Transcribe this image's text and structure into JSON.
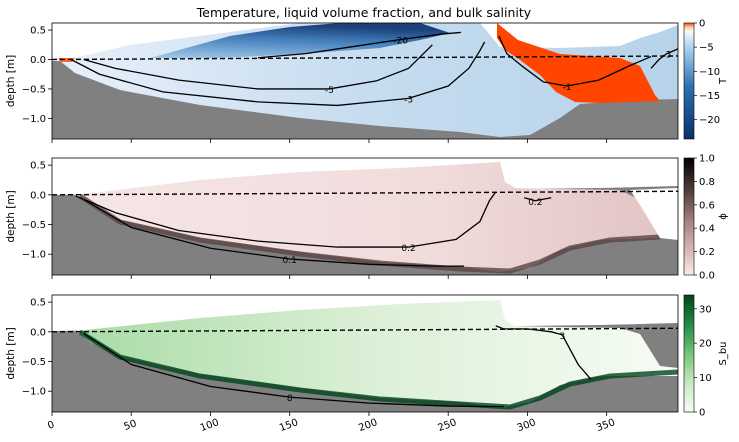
{
  "figure_title": "Temperature, liquid volume fraction, and bulk salinity",
  "colors": {
    "land_gray": "#808080",
    "temperature_cold": "#08306b",
    "temperature_mid": "#6baed6",
    "temperature_warm": "#f5f9fd",
    "temperature_hot": "#ff4500",
    "phi_low": "#f7e4e4",
    "phi_mid": "#a88484",
    "phi_high": "#000000",
    "salinity_low": "#f7fcf5",
    "salinity_mid": "#41ab5d",
    "salinity_high": "#00441b",
    "contour": "#000000"
  },
  "chart_data": [
    {
      "type": "heatmap",
      "variable": "temperature",
      "title": "Temperature, liquid volume fraction, and bulk salinity",
      "ylabel": "depth [m]",
      "xlabel": "",
      "colorbar_label": "T",
      "colormap": "blue-white-orange",
      "xlim": [
        0,
        395
      ],
      "ylim": [
        -1.35,
        0.62
      ],
      "yticks": [
        -1.0,
        -0.5,
        0.0,
        0.5
      ],
      "ytick_labels": [
        "−1.0",
        "−0.5",
        "0.0",
        "0.5"
      ],
      "colorbar_range": [
        -24,
        0
      ],
      "colorbar_ticks": [
        0,
        -5,
        -10,
        -15,
        -20
      ],
      "colorbar_tick_labels": [
        "0",
        "−5",
        "−10",
        "−15",
        "−20"
      ],
      "contour_labels": [
        "-20",
        "-5",
        "-3",
        "-1",
        "-3"
      ],
      "contours": [
        {
          "label": "-20",
          "x": [
            130,
            160,
            190,
            220,
            245,
            258
          ],
          "y": [
            0.03,
            0.1,
            0.22,
            0.34,
            0.43,
            0.46
          ]
        },
        {
          "label": "-5",
          "x": [
            20,
            40,
            80,
            130,
            175,
            205,
            225,
            240
          ],
          "y": [
            0.0,
            -0.15,
            -0.35,
            -0.5,
            -0.5,
            -0.36,
            -0.15,
            0.25
          ]
        },
        {
          "label": "-3",
          "x": [
            12,
            30,
            70,
            130,
            180,
            225,
            250,
            263,
            270,
            273
          ],
          "y": [
            0.0,
            -0.25,
            -0.55,
            -0.72,
            -0.78,
            -0.66,
            -0.45,
            -0.15,
            0.15,
            0.3
          ]
        },
        {
          "label": "-1",
          "x": [
            282,
            287,
            297,
            310,
            325,
            345,
            365,
            378
          ],
          "y": [
            0.4,
            0.1,
            -0.12,
            -0.38,
            -0.45,
            -0.35,
            -0.1,
            0.05
          ]
        },
        {
          "label": "-3",
          "x": [
            378,
            383,
            388,
            395
          ],
          "y": [
            -0.15,
            0.0,
            0.1,
            0.18
          ]
        }
      ],
      "waterline": {
        "x": [
          0,
          100,
          200,
          300,
          395
        ],
        "y": [
          0.0,
          0.015,
          0.03,
          0.045,
          0.06
        ]
      }
    },
    {
      "type": "heatmap",
      "variable": "liquid volume fraction",
      "ylabel": "depth [m]",
      "xlabel": "",
      "colorbar_label": "ϕ",
      "colormap": "pink-to-black",
      "xlim": [
        0,
        395
      ],
      "ylim": [
        -1.35,
        0.62
      ],
      "yticks": [
        -1.0,
        -0.5,
        0.0,
        0.5
      ],
      "ytick_labels": [
        "−1.0",
        "−0.5",
        "0.0",
        "0.5"
      ],
      "colorbar_range": [
        0.0,
        1.0
      ],
      "colorbar_ticks": [
        1.0,
        0.8,
        0.6,
        0.4,
        0.2,
        0.0
      ],
      "colorbar_tick_labels": [
        "1.0",
        "0.8",
        "0.6",
        "0.4",
        "0.2",
        "0.0"
      ],
      "contour_labels": [
        "0.2",
        "0.1",
        "0.2"
      ],
      "contours": [
        {
          "label": "0.1",
          "x": [
            15,
            40,
            80,
            130,
            180,
            225,
            255,
            270,
            276,
            280
          ],
          "y": [
            -0.02,
            -0.3,
            -0.6,
            -0.78,
            -0.88,
            -0.88,
            -0.75,
            -0.45,
            -0.1,
            0.05
          ]
        },
        {
          "label": "0.2",
          "x": [
            20,
            50,
            100,
            150,
            200,
            240,
            260
          ],
          "y": [
            -0.08,
            -0.55,
            -0.9,
            -1.08,
            -1.17,
            -1.2,
            -1.2
          ]
        },
        {
          "label": "0.2",
          "x": [
            298,
            305,
            315
          ],
          "y": [
            -0.05,
            -0.1,
            -0.05
          ]
        }
      ],
      "waterline": {
        "x": [
          0,
          100,
          200,
          300,
          395
        ],
        "y": [
          0.0,
          0.015,
          0.03,
          0.045,
          0.06
        ]
      }
    },
    {
      "type": "heatmap",
      "variable": "bulk salinity",
      "ylabel": "depth [m]",
      "xlabel": "",
      "colorbar_label": "S_bu",
      "colormap": "greens",
      "xlim": [
        0,
        395
      ],
      "ylim": [
        -1.35,
        0.62
      ],
      "yticks": [
        -1.0,
        -0.5,
        0.0,
        0.5
      ],
      "ytick_labels": [
        "−1.0",
        "−0.5",
        "0.0",
        "0.5"
      ],
      "xticks": [
        0,
        50,
        100,
        150,
        200,
        250,
        300,
        350
      ],
      "xtick_labels": [
        "0",
        "50",
        "100",
        "150",
        "200",
        "250",
        "300",
        "350"
      ],
      "colorbar_range": [
        0,
        34
      ],
      "colorbar_ticks": [
        30,
        20,
        10,
        0
      ],
      "colorbar_tick_labels": [
        "30",
        "20",
        "10",
        "0"
      ],
      "contour_labels": [
        "3",
        "8"
      ],
      "contours": [
        {
          "label": "3",
          "x": [
            280,
            285,
            300,
            315,
            322,
            327,
            332,
            340
          ],
          "y": [
            0.1,
            0.05,
            0.05,
            0.0,
            -0.05,
            -0.3,
            -0.55,
            -0.8
          ]
        },
        {
          "label": "8",
          "x": [
            20,
            50,
            100,
            150,
            200,
            250,
            285
          ],
          "y": [
            -0.03,
            -0.55,
            -0.92,
            -1.1,
            -1.2,
            -1.25,
            -1.26
          ]
        }
      ],
      "waterline": {
        "x": [
          0,
          100,
          200,
          300,
          395
        ],
        "y": [
          0.0,
          0.015,
          0.03,
          0.045,
          0.06
        ]
      }
    }
  ]
}
